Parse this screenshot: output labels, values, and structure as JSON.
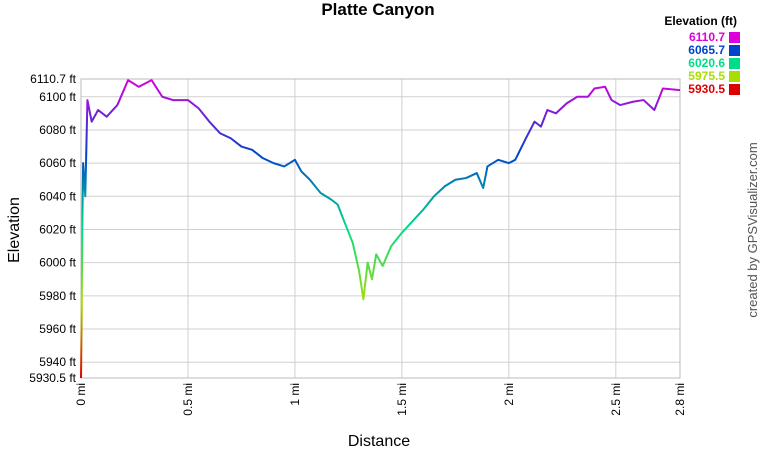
{
  "chart_data": {
    "type": "line",
    "title": "Platte Canyon",
    "x_label": "Distance",
    "y_label": "Elevation",
    "credit": "created by GPSVisualizer.com",
    "legend_title": "Elevation (ft)",
    "color_scale": [
      {
        "value": 6110.7,
        "color": "#dd00dd"
      },
      {
        "value": 6065.7,
        "color": "#0044cc"
      },
      {
        "value": 6020.6,
        "color": "#00dd88"
      },
      {
        "value": 5975.5,
        "color": "#aadd00"
      },
      {
        "value": 5930.5,
        "color": "#dd0000"
      }
    ],
    "x": [
      0,
      0.003,
      0.006,
      0.01,
      0.02,
      0.03,
      0.05,
      0.08,
      0.12,
      0.17,
      0.22,
      0.27,
      0.33,
      0.38,
      0.43,
      0.5,
      0.55,
      0.6,
      0.65,
      0.7,
      0.75,
      0.8,
      0.85,
      0.9,
      0.95,
      1.0,
      1.03,
      1.07,
      1.12,
      1.17,
      1.2,
      1.23,
      1.27,
      1.3,
      1.32,
      1.34,
      1.36,
      1.38,
      1.41,
      1.45,
      1.5,
      1.55,
      1.6,
      1.65,
      1.7,
      1.75,
      1.8,
      1.85,
      1.88,
      1.9,
      1.95,
      2.0,
      2.03,
      2.08,
      2.12,
      2.15,
      2.18,
      2.22,
      2.27,
      2.32,
      2.37,
      2.4,
      2.45,
      2.48,
      2.52,
      2.58,
      2.63,
      2.68,
      2.72,
      2.8
    ],
    "values": [
      5930.5,
      5965,
      6020,
      6060,
      6040,
      6098,
      6085,
      6092,
      6088,
      6095,
      6110,
      6106,
      6110,
      6100,
      6098,
      6098,
      6093,
      6085,
      6078,
      6075,
      6070,
      6068,
      6063,
      6060,
      6058,
      6062,
      6055,
      6050,
      6042,
      6038,
      6035,
      6025,
      6012,
      5995,
      5978,
      6000,
      5990,
      6005,
      5998,
      6010,
      6018,
      6025,
      6032,
      6040,
      6046,
      6050,
      6051,
      6054,
      6045,
      6058,
      6062,
      6060,
      6062,
      6075,
      6085,
      6082,
      6092,
      6090,
      6096,
      6100,
      6100,
      6105,
      6106,
      6098,
      6095,
      6097,
      6098,
      6092,
      6105,
      6104
    ],
    "xlim": [
      0,
      2.8
    ],
    "ylim": [
      5930.5,
      6110.7
    ],
    "xticks": [
      {
        "value": 0,
        "label": "0 mi"
      },
      {
        "value": 0.5,
        "label": "0.5 mi"
      },
      {
        "value": 1,
        "label": "1 mi"
      },
      {
        "value": 1.5,
        "label": "1.5 mi"
      },
      {
        "value": 2,
        "label": "2 mi"
      },
      {
        "value": 2.5,
        "label": "2.5 mi"
      },
      {
        "value": 2.8,
        "label": "2.8 mi"
      }
    ],
    "yticks": [
      {
        "value": 5930.5,
        "label": "5930.5 ft"
      },
      {
        "value": 5940,
        "label": "5940 ft"
      },
      {
        "value": 5960,
        "label": "5960 ft"
      },
      {
        "value": 5980,
        "label": "5980 ft"
      },
      {
        "value": 6000,
        "label": "6000 ft"
      },
      {
        "value": 6020,
        "label": "6020 ft"
      },
      {
        "value": 6040,
        "label": "6040 ft"
      },
      {
        "value": 6060,
        "label": "6060 ft"
      },
      {
        "value": 6080,
        "label": "6080 ft"
      },
      {
        "value": 6100,
        "label": "6100 ft"
      },
      {
        "value": 6110.7,
        "label": "6110.7 ft"
      }
    ],
    "grid": true
  }
}
